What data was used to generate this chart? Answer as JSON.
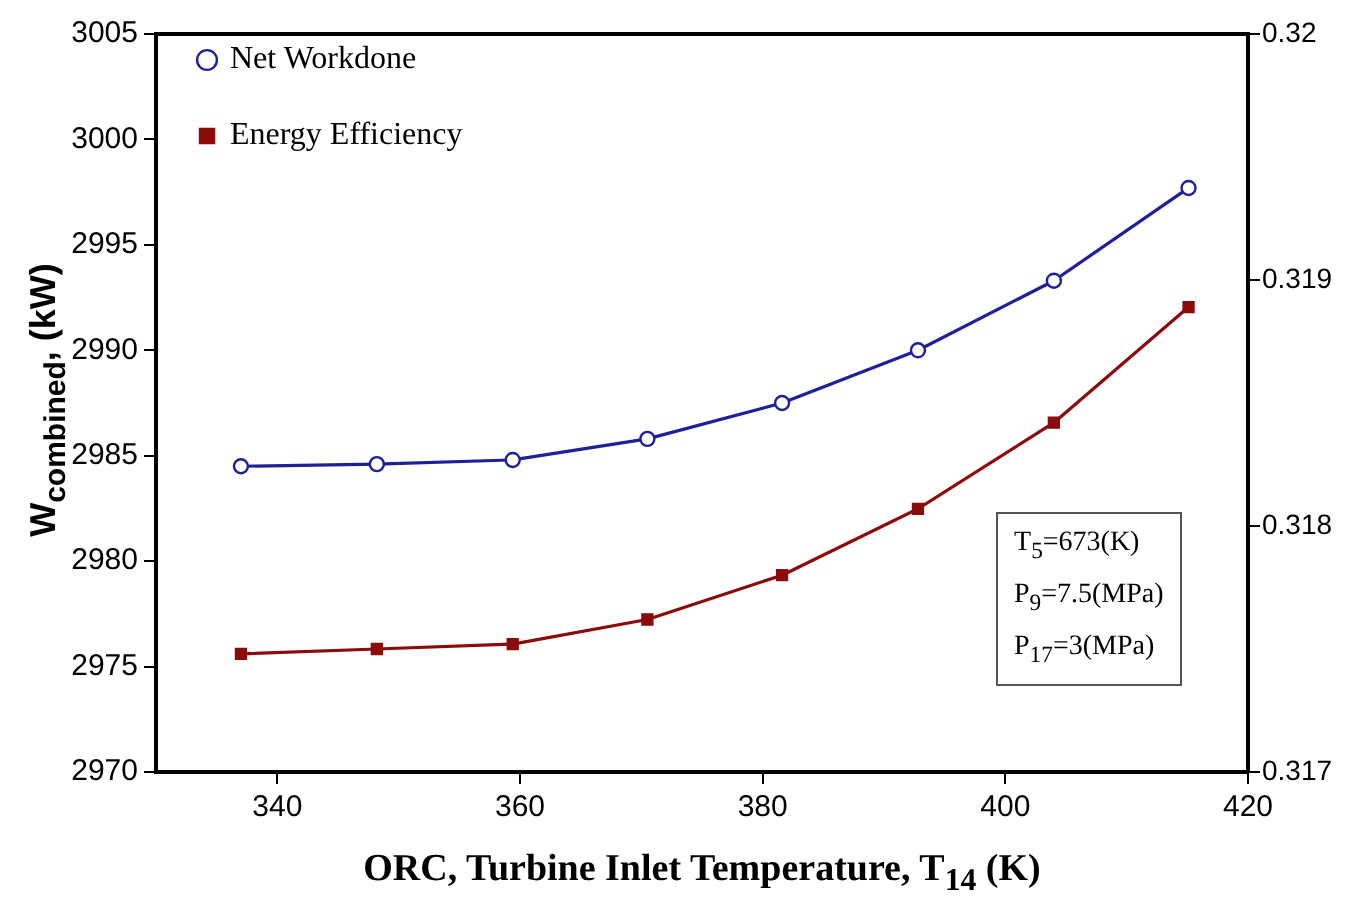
{
  "chart_data": {
    "type": "line",
    "xlabel": "ORC, Turbine Inlet Temperature, T$_{14}$ (K)",
    "ylabel": "W$_{combined}$, (kW)",
    "x": [
      337,
      348.2,
      359.4,
      370.5,
      381.6,
      392.8,
      404,
      415.1
    ],
    "series": [
      {
        "name": "Net Workdone",
        "color": "#1f1f9a",
        "marker": "circle",
        "values": [
          2984.5,
          2984.6,
          2984.8,
          2985.8,
          2987.5,
          2990.0,
          2993.3,
          2997.7
        ]
      },
      {
        "name": "Energy Efficiency",
        "color": "#8b0a0a",
        "marker": "square",
        "axis": "y2",
        "values": [
          0.31748,
          0.3175,
          0.31752,
          0.31762,
          0.3178,
          0.31807,
          0.31842,
          0.31889
        ]
      }
    ],
    "xlim": [
      330,
      420
    ],
    "xticks": [
      340,
      360,
      380,
      400,
      420
    ],
    "ylim": [
      2970,
      3005
    ],
    "yticks": [
      2970,
      2975,
      2980,
      2985,
      2990,
      2995,
      3000,
      3005
    ],
    "y2lim": [
      0.317,
      0.32
    ],
    "y2ticks": [
      0.317,
      0.318,
      0.319,
      0.32
    ],
    "annotations": [
      "T$_{5}$=673(K)",
      "P$_{9}$=7.5(MPa)",
      "P$_{17}$=3(MPa)"
    ],
    "legend": "top left",
    "grid": false,
    "line_style": "solid"
  }
}
